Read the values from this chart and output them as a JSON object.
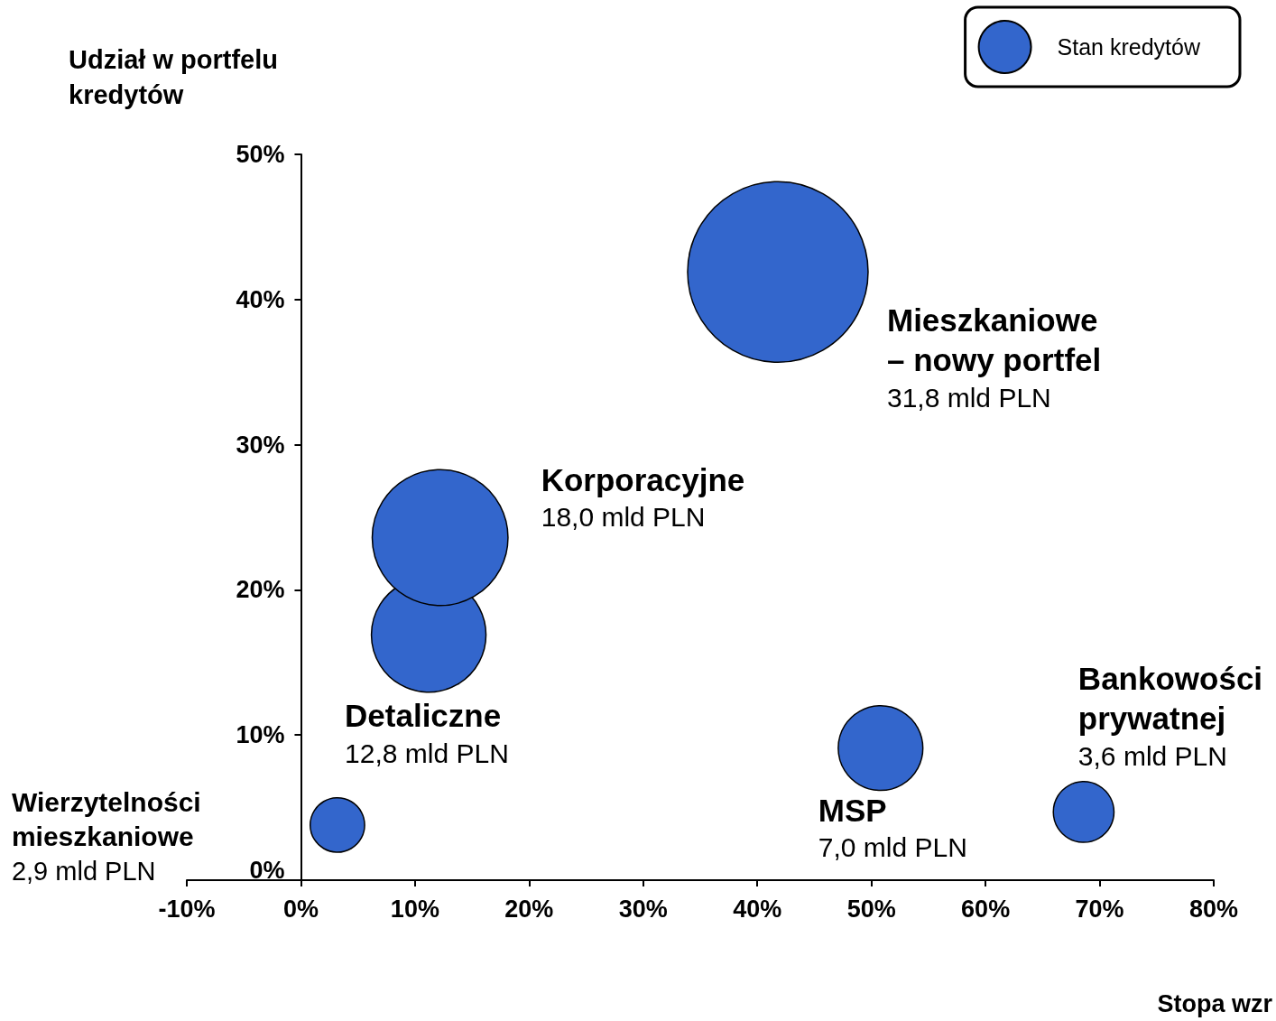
{
  "chart_data": {
    "type": "bubble",
    "xlabel": "Stopa wzr",
    "ylabel": "Udział w portfelu kredytów",
    "series": [
      {
        "name": "Stan kredytów",
        "color": "#3366cc",
        "x": [
          3.2,
          11.2,
          12.2,
          41.8,
          50.8,
          68.6
        ],
        "values": [
          3.8,
          16.9,
          23.6,
          41.9,
          9.1,
          4.7
        ],
        "sizes": [
          0.091,
          0.403,
          0.566,
          1,
          0.22,
          0.113
        ]
      }
    ],
    "annotations": [
      "Wierzytelności mieszkaniowe",
      "2,9 mld PLN",
      "Detaliczne",
      "12,8 mld PLN",
      "Korporacyjne",
      "18,0 mld PLN",
      "Mieszkaniowe – nowy portfel",
      "31,8 mld PLN",
      "MSP",
      "7,0 mld PLN",
      "Bankowości prywatnej",
      "3,6 mld PLN"
    ],
    "xlim": [
      -10,
      80
    ],
    "xticks": [
      {
        "value": -10,
        "label": "-10%"
      },
      {
        "value": 0,
        "label": "0%"
      },
      {
        "value": 10,
        "label": "10%"
      },
      {
        "value": 20,
        "label": "20%"
      },
      {
        "value": 30,
        "label": "30%"
      },
      {
        "value": 40,
        "label": "40%"
      },
      {
        "value": 50,
        "label": "50%"
      },
      {
        "value": 60,
        "label": "60%"
      },
      {
        "value": 70,
        "label": "70%"
      },
      {
        "value": 80,
        "label": "80%"
      }
    ],
    "ylim": [
      0,
      50
    ],
    "yticks": [
      {
        "value": 0,
        "label": "0%"
      },
      {
        "value": 10,
        "label": "10%"
      },
      {
        "value": 20,
        "label": "20%"
      },
      {
        "value": 30,
        "label": "30%"
      },
      {
        "value": 40,
        "label": "40%"
      },
      {
        "value": 50,
        "label": "50%"
      }
    ],
    "grid": false,
    "legend": "top right",
    "marker": "circle"
  }
}
